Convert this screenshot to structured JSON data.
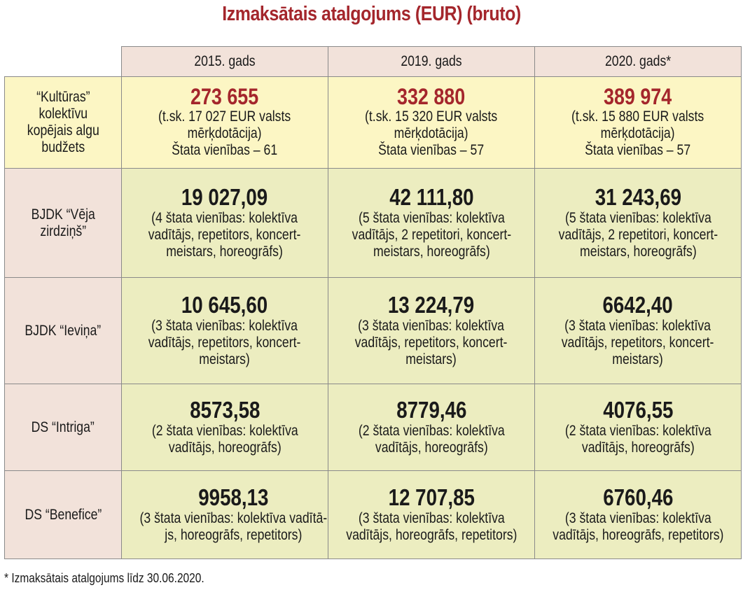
{
  "title": "Izmaksātais atalgojums (EUR) (bruto)",
  "columns": [
    "2015. gads",
    "2019. gads",
    "2020. gads*"
  ],
  "budget": {
    "label": [
      "“Kultūras”",
      "kolektīvu",
      "kopējais algu",
      "budžets"
    ],
    "cells": [
      {
        "amount": "273 655",
        "lines": [
          "(t.sk. 17 027 EUR valsts",
          "mērķdotācija)",
          "Štata vienības – 61"
        ]
      },
      {
        "amount": "332 880",
        "lines": [
          "(t.sk. 15 320 EUR valsts",
          "mērķdotācija)",
          "Štata vienības – 57"
        ]
      },
      {
        "amount": "389 974",
        "lines": [
          "(t.sk. 15 880 EUR valsts",
          "mērķdotācija)",
          "Štata vienības – 57"
        ]
      }
    ]
  },
  "rows": [
    {
      "label": [
        "BJDK “Vēja",
        "zirdziņš”"
      ],
      "cells": [
        {
          "amount": "19 027,09",
          "lines": [
            "(4 štata vienības: kolektīva",
            "vadītājs, repetitors, koncert-",
            "meistars, horeogrāfs)"
          ]
        },
        {
          "amount": "42 111,80",
          "lines": [
            "(5 štata vienības: kolektīva",
            "vadītājs, 2 repetitori, koncert-",
            "meistars, horeogrāfs)"
          ]
        },
        {
          "amount": "31 243,69",
          "lines": [
            "(5 štata vienības: kolektīva",
            "vadītājs, 2 repetitori, koncert-",
            "meistars, horeogrāfs)"
          ]
        }
      ]
    },
    {
      "label": [
        "BJDK “Ieviņa”"
      ],
      "cells": [
        {
          "amount": "10 645,60",
          "lines": [
            "(3 štata vienības: kolektīva",
            "vadītājs, repetitors, koncert-",
            "meistars)"
          ]
        },
        {
          "amount": "13 224,79",
          "lines": [
            "(3 štata vienības: kolektīva",
            "vadītājs, repetitors, koncert-",
            "meistars)"
          ]
        },
        {
          "amount": "6642,40",
          "lines": [
            "(3 štata vienības: kolektīva",
            "vadītājs, repetitors, koncert-",
            "meistars)"
          ]
        }
      ]
    },
    {
      "label": [
        "DS “Intriga”"
      ],
      "cells": [
        {
          "amount": "8573,58",
          "lines": [
            "(2 štata vienības: kolektīva",
            "vadītājs, horeogrāfs)"
          ]
        },
        {
          "amount": "8779,46",
          "lines": [
            "(2 štata vienības: kolektīva",
            "vadītājs, horeogrāfs)"
          ]
        },
        {
          "amount": "4076,55",
          "lines": [
            "(2 štata vienības: kolektīva",
            "vadītājs, horeogrāfs)"
          ]
        }
      ]
    },
    {
      "label": [
        "DS “Benefice”"
      ],
      "cells": [
        {
          "amount": "9958,13",
          "lines": [
            "(3 štata vienības: kolektīva vadītā-",
            "js, horeogrāfs, repetitors)"
          ]
        },
        {
          "amount": "12 707,85",
          "lines": [
            "(3 štata vienības: kolektīva",
            "vadītājs, horeogrāfs, repetitors)"
          ]
        },
        {
          "amount": "6760,46",
          "lines": [
            "(3 štata vienības: kolektīva",
            "vadītājs, horeogrāfs, repetitors)"
          ]
        }
      ]
    }
  ],
  "footnote": "* Izmaksātais atalgojums līdz 30.06.2020."
}
